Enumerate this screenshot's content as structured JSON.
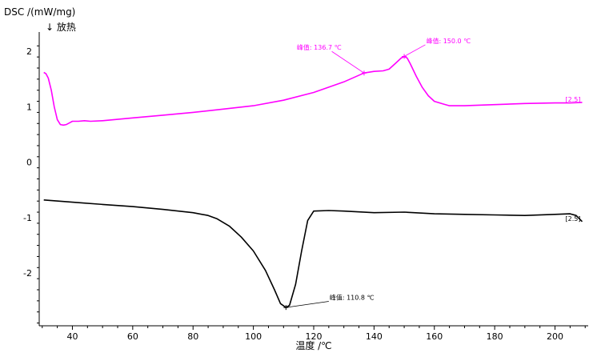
{
  "chart_data": {
    "type": "line",
    "ylabel": "DSC /(mW/mg)",
    "ysub": "↓ 放热",
    "xlabel": "温度 /℃",
    "xlim": [
      29,
      211
    ],
    "ylim": [
      -2.95,
      2.35
    ],
    "xticks": [
      40,
      60,
      80,
      100,
      120,
      140,
      160,
      180,
      200
    ],
    "yticks": [
      -2,
      -1,
      0,
      1,
      2
    ],
    "grid": false,
    "series": [
      {
        "color": "#ff00ff",
        "end_label": "[2.5]",
        "points": [
          [
            30.5,
            1.62
          ],
          [
            31.2,
            1.6
          ],
          [
            32,
            1.52
          ],
          [
            33,
            1.3
          ],
          [
            34,
            1.0
          ],
          [
            35,
            0.77
          ],
          [
            36,
            0.68
          ],
          [
            37,
            0.67
          ],
          [
            38,
            0.68
          ],
          [
            39,
            0.71
          ],
          [
            40,
            0.74
          ],
          [
            42,
            0.74
          ],
          [
            44,
            0.75
          ],
          [
            46,
            0.74
          ],
          [
            50,
            0.75
          ],
          [
            60,
            0.8
          ],
          [
            70,
            0.85
          ],
          [
            80,
            0.9
          ],
          [
            90,
            0.96
          ],
          [
            100,
            1.02
          ],
          [
            110,
            1.12
          ],
          [
            120,
            1.26
          ],
          [
            130,
            1.45
          ],
          [
            136.7,
            1.61
          ],
          [
            140,
            1.64
          ],
          [
            143,
            1.65
          ],
          [
            145,
            1.68
          ],
          [
            147,
            1.78
          ],
          [
            149,
            1.88
          ],
          [
            150,
            1.91
          ],
          [
            151,
            1.88
          ],
          [
            152,
            1.78
          ],
          [
            154,
            1.55
          ],
          [
            156,
            1.35
          ],
          [
            158,
            1.2
          ],
          [
            160,
            1.1
          ],
          [
            163,
            1.05
          ],
          [
            165,
            1.02
          ],
          [
            170,
            1.02
          ],
          [
            180,
            1.04
          ],
          [
            190,
            1.06
          ],
          [
            200,
            1.07
          ],
          [
            205,
            1.07
          ],
          [
            209,
            1.08
          ]
        ]
      },
      {
        "color": "#000000",
        "end_label": "[2.5]",
        "points": [
          [
            30.5,
            -0.68
          ],
          [
            40,
            -0.72
          ],
          [
            50,
            -0.76
          ],
          [
            60,
            -0.8
          ],
          [
            70,
            -0.85
          ],
          [
            80,
            -0.91
          ],
          [
            85,
            -0.96
          ],
          [
            88,
            -1.02
          ],
          [
            92,
            -1.15
          ],
          [
            96,
            -1.35
          ],
          [
            100,
            -1.6
          ],
          [
            104,
            -1.95
          ],
          [
            107,
            -2.3
          ],
          [
            109,
            -2.55
          ],
          [
            110.8,
            -2.62
          ],
          [
            112,
            -2.58
          ],
          [
            114,
            -2.2
          ],
          [
            116,
            -1.6
          ],
          [
            118,
            -1.05
          ],
          [
            120,
            -0.88
          ],
          [
            125,
            -0.87
          ],
          [
            130,
            -0.88
          ],
          [
            140,
            -0.91
          ],
          [
            150,
            -0.9
          ],
          [
            160,
            -0.93
          ],
          [
            170,
            -0.94
          ],
          [
            180,
            -0.95
          ],
          [
            190,
            -0.96
          ],
          [
            200,
            -0.94
          ],
          [
            205,
            -0.93
          ],
          [
            207,
            -0.96
          ],
          [
            209,
            -1.07
          ]
        ]
      }
    ],
    "annotations": [
      {
        "text": "峰值: 136.7 ℃",
        "x": 136.7,
        "y": 1.61,
        "color": "#ff00ff",
        "tx": 126.0,
        "ty": 2.0
      },
      {
        "text": "峰值: 150.0 ℃",
        "x": 150.0,
        "y": 1.91,
        "color": "#ff00ff",
        "tx": 157.0,
        "ty": 2.12
      },
      {
        "text": "峰值: 110.8 ℃",
        "x": 110.8,
        "y": -2.62,
        "color": "#000000",
        "tx": 125.0,
        "ty": -2.51
      }
    ]
  }
}
